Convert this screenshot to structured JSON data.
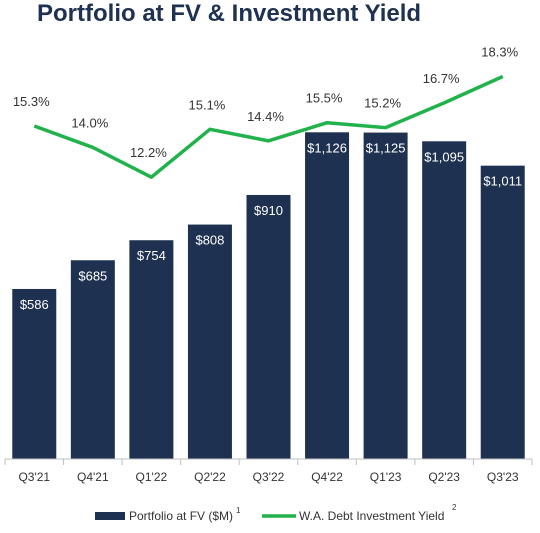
{
  "title": "Portfolio at FV & Investment Yield",
  "colors": {
    "bar": "#1f3150",
    "line": "#22b24c",
    "axis": "#bfbfbf"
  },
  "chart_data": {
    "type": "bar",
    "title": "Portfolio at FV & Investment Yield",
    "categories": [
      "Q3'21",
      "Q4'21",
      "Q1'22",
      "Q2'22",
      "Q3'22",
      "Q4'22",
      "Q1'23",
      "Q2'23",
      "Q3'23"
    ],
    "series": [
      {
        "name": "Portfolio at FV ($M)",
        "legend_superscript": "1",
        "type": "bar",
        "values": [
          586,
          685,
          754,
          808,
          910,
          1126,
          1125,
          1095,
          1011
        ],
        "labels": [
          "$586",
          "$685",
          "$754",
          "$808",
          "$910",
          "$1,126",
          "$1,125",
          "$1,095",
          "$1,011"
        ]
      },
      {
        "name": "W.A. Debt Investment Yield",
        "legend_superscript": "2",
        "type": "line",
        "values": [
          15.3,
          14.0,
          12.2,
          15.1,
          14.4,
          15.5,
          15.2,
          16.7,
          18.3
        ],
        "labels": [
          "15.3%",
          "14.0%",
          "12.2%",
          "15.1%",
          "14.4%",
          "15.5%",
          "15.2%",
          "16.7%",
          "18.3%"
        ]
      }
    ],
    "ylim": [
      0,
      1150
    ],
    "legend_position": "bottom",
    "grid": false
  }
}
